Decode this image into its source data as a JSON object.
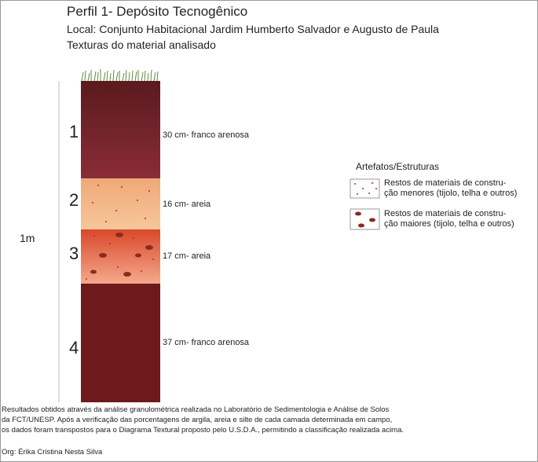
{
  "header": {
    "title": "Perfil 1- Depósito Tecnogênico",
    "location": "Local: Conjunto Habitacional Jardim Humberto Salvador e Augusto de Paula",
    "subtitle": "Texturas do material analisado"
  },
  "scale_label": "1m",
  "layers": [
    {
      "number": "1",
      "label": "30 cm- franco arenosa"
    },
    {
      "number": "2",
      "label": "16 cm- areia"
    },
    {
      "number": "3",
      "label": "17 cm- areia"
    },
    {
      "number": "4",
      "label": "37 cm- franco arenosa"
    }
  ],
  "legend": {
    "title": "Artefatos/Estruturas",
    "items": [
      {
        "lines": [
          "Restos de materiais de constru-",
          "ção menores (tijolo, telha e outros)"
        ]
      },
      {
        "lines": [
          "Restos de materiais de constru-",
          "ção maiores (tijolo, telha e outros)"
        ]
      }
    ]
  },
  "footer": {
    "lines": [
      "Resultados obtidos através da análise granulométrica realizada no Laboratório de Sedimentologia e Análise de Solos",
      "da FCT/UNESP. Após a verificação das porcentagens de argila, areia e silte de cada camada determinada em campo,",
      "os dados foram transpostos para o Diagrama Textural proposto pelo U.S.D.A., permitindo a classificação realizada acima."
    ],
    "credit": "Org: Érika Cristina Nesta Silva"
  }
}
